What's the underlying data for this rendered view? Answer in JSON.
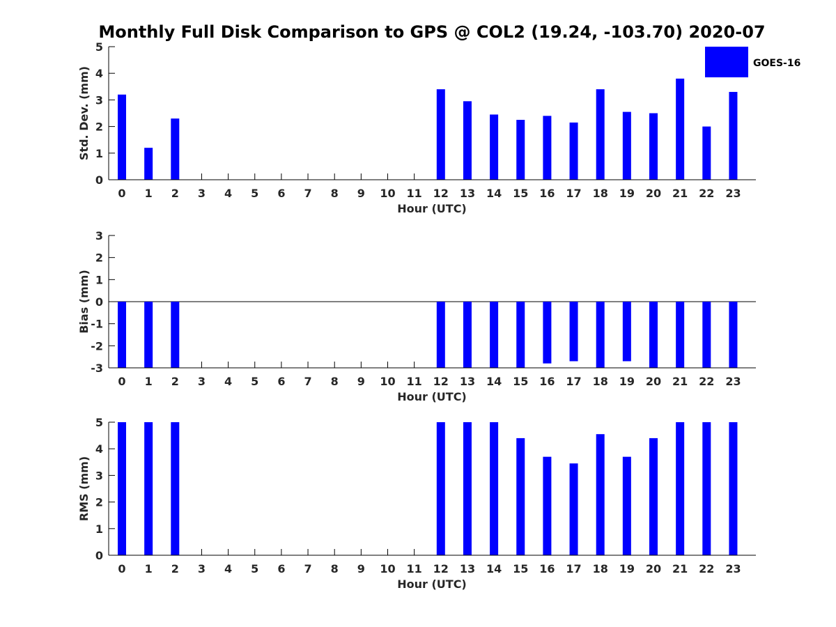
{
  "title": "Monthly Full Disk Comparison to GPS @ COL2 (19.24, -103.70) 2020-07",
  "colors": {
    "bar": "#0000ff",
    "axis": "#000000"
  },
  "legend": {
    "label": "GOES-16",
    "placement": "top-right"
  },
  "chart_data": [
    {
      "type": "bar",
      "ylabel": "Std. Dev. (mm)",
      "xlabel": "Hour (UTC)",
      "ylim": [
        0,
        5
      ],
      "yticks": [
        0,
        1,
        2,
        3,
        4,
        5
      ],
      "categories": [
        0,
        1,
        2,
        3,
        4,
        5,
        6,
        7,
        8,
        9,
        10,
        11,
        12,
        13,
        14,
        15,
        16,
        17,
        18,
        19,
        20,
        21,
        22,
        23
      ],
      "series": [
        {
          "name": "GOES-16",
          "values": [
            3.2,
            1.2,
            2.3,
            null,
            null,
            null,
            null,
            null,
            null,
            null,
            null,
            null,
            3.4,
            2.95,
            2.45,
            2.25,
            2.4,
            2.15,
            3.4,
            2.55,
            2.5,
            3.8,
            2.0,
            3.3
          ]
        }
      ]
    },
    {
      "type": "bar",
      "ylabel": "Bias (mm)",
      "xlabel": "Hour (UTC)",
      "ylim": [
        -3,
        3
      ],
      "yticks": [
        -3,
        -2,
        -1,
        0,
        1,
        2,
        3
      ],
      "categories": [
        0,
        1,
        2,
        3,
        4,
        5,
        6,
        7,
        8,
        9,
        10,
        11,
        12,
        13,
        14,
        15,
        16,
        17,
        18,
        19,
        20,
        21,
        22,
        23
      ],
      "series": [
        {
          "name": "GOES-16",
          "values": [
            -3.0,
            -3.0,
            -3.0,
            null,
            null,
            null,
            null,
            null,
            null,
            null,
            null,
            null,
            -3.0,
            -3.0,
            -3.0,
            -3.0,
            -2.8,
            -2.7,
            -3.0,
            -2.7,
            -3.0,
            -3.0,
            -3.0,
            -3.0
          ]
        }
      ]
    },
    {
      "type": "bar",
      "ylabel": "RMS (mm)",
      "xlabel": "Hour (UTC)",
      "ylim": [
        0,
        5
      ],
      "yticks": [
        0,
        1,
        2,
        3,
        4,
        5
      ],
      "categories": [
        0,
        1,
        2,
        3,
        4,
        5,
        6,
        7,
        8,
        9,
        10,
        11,
        12,
        13,
        14,
        15,
        16,
        17,
        18,
        19,
        20,
        21,
        22,
        23
      ],
      "series": [
        {
          "name": "GOES-16",
          "values": [
            5.0,
            5.0,
            5.0,
            null,
            null,
            null,
            null,
            null,
            null,
            null,
            null,
            null,
            5.0,
            5.0,
            5.0,
            4.4,
            3.7,
            3.45,
            4.55,
            3.7,
            4.4,
            5.0,
            5.0,
            5.0
          ]
        }
      ]
    }
  ]
}
